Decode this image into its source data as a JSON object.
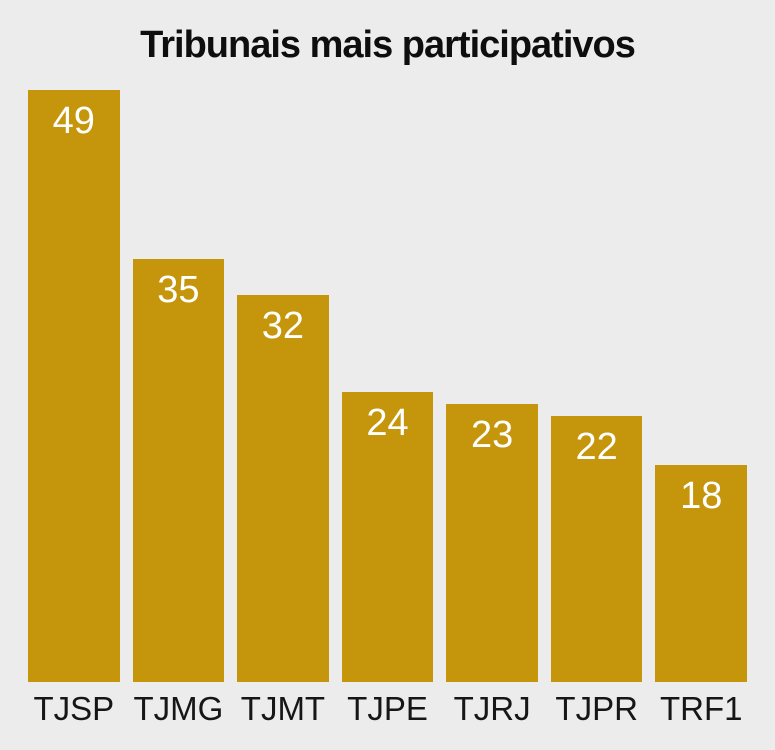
{
  "chart_data": {
    "type": "bar",
    "title": "Tribunais mais participativos",
    "categories": [
      "TJSP",
      "TJMG",
      "TJMT",
      "TJPE",
      "TJRJ",
      "TJPR",
      "TRF1"
    ],
    "values": [
      49,
      35,
      32,
      24,
      23,
      22,
      18
    ],
    "xlabel": "",
    "ylabel": "",
    "ylim": [
      0,
      49
    ],
    "grid": "off",
    "legend": "none",
    "axes_visible": false,
    "value_labels": "inside-top of each bar, white",
    "colors": {
      "bar": "#C5950B",
      "background": "#ECECEC",
      "title_text": "#0E0E0E",
      "category_text": "#161616",
      "value_text": "#FFFFFF"
    }
  }
}
